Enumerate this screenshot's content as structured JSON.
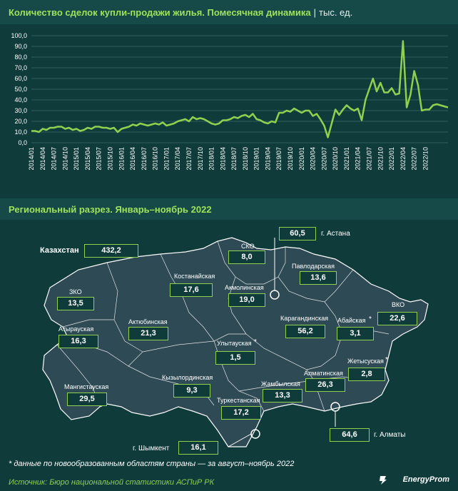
{
  "header": {
    "title": "Количество сделок купли-продажи жилья. Помесячная динамика",
    "separator": "|",
    "unit": "тыс. ед."
  },
  "chart_data": {
    "type": "line",
    "title": "Количество сделок купли-продажи жилья. Помесячная динамика",
    "ylabel": "",
    "unit": "тыс. ед.",
    "ylim": [
      0,
      100
    ],
    "yticks": [
      "0,0",
      "10,0",
      "20,0",
      "30,0",
      "40,0",
      "50,0",
      "60,0",
      "70,0",
      "80,0",
      "90,0",
      "100,0"
    ],
    "xtick_labels": [
      "2014/01",
      "2014/04",
      "2014/07",
      "2014/10",
      "2015/01",
      "2015/04",
      "2015/07",
      "2015/10",
      "2016/01",
      "2016/04",
      "2016/07",
      "2016/10",
      "2017/01",
      "2017/04",
      "2017/07",
      "2017/10",
      "2018/01",
      "2018/04",
      "2018/07",
      "2018/10",
      "2019/01",
      "2019/04",
      "2019/07",
      "2019/10",
      "2020/01",
      "2020/04",
      "2020/07",
      "2020/10",
      "2021/01",
      "2021/04",
      "2021/07",
      "2021/10",
      "2022/01",
      "2022/04",
      "2022/07",
      "2022/10"
    ],
    "grid": true,
    "line_color": "#8fd14f",
    "values": [
      11,
      11,
      10,
      13,
      12,
      14,
      14,
      15,
      15,
      13,
      14,
      12,
      13,
      11,
      12,
      14,
      13,
      15,
      15,
      14,
      14,
      13,
      14,
      10,
      13,
      14,
      15,
      17,
      16,
      18,
      17,
      16,
      17,
      18,
      17,
      19,
      16,
      17,
      18,
      20,
      21,
      22,
      20,
      24,
      22,
      23,
      22,
      20,
      18,
      17,
      18,
      21,
      21,
      22,
      24,
      23,
      25,
      26,
      24,
      27,
      22,
      21,
      19,
      18,
      20,
      19,
      28,
      28,
      30,
      29,
      32,
      30,
      28,
      30,
      30,
      25,
      27,
      22,
      16,
      5,
      18,
      31,
      26,
      31,
      35,
      32,
      30,
      32,
      21,
      40,
      50,
      60,
      48,
      56,
      47,
      47,
      51,
      45,
      46,
      95,
      33,
      45,
      67,
      54,
      30,
      31,
      31,
      35,
      36,
      35,
      34,
      33
    ]
  },
  "regional": {
    "title": "Региональный разрез. Январь–ноябрь 2022",
    "kazakhstan": {
      "label": "Казахстан",
      "value": "432,2"
    },
    "regions": [
      {
        "name": "СКО",
        "value": "8,0"
      },
      {
        "name": "г. Астана",
        "value": "60,5"
      },
      {
        "name": "Павлодарская",
        "value": "13,6"
      },
      {
        "name": "Костанайская",
        "value": "17,6"
      },
      {
        "name": "Акмолинская",
        "value": "19,0"
      },
      {
        "name": "ЗКО",
        "value": "13,5"
      },
      {
        "name": "ВКО",
        "value": "22,6"
      },
      {
        "name": "Атырауская",
        "value": "16,3"
      },
      {
        "name": "Актюбинская",
        "value": "21,3"
      },
      {
        "name": "Карагандинская",
        "value": "56,2"
      },
      {
        "name": "Абайская",
        "value": "3,1"
      },
      {
        "name": "Улытауская",
        "value": "1,5"
      },
      {
        "name": "Жетысуская",
        "value": "2,8"
      },
      {
        "name": "Мангистауская",
        "value": "29,5"
      },
      {
        "name": "Кызылординская",
        "value": "9,3"
      },
      {
        "name": "Алматинская",
        "value": "26,3"
      },
      {
        "name": "Жамбылская",
        "value": "13,3"
      },
      {
        "name": "Туркестанская",
        "value": "17,2"
      },
      {
        "name": "г. Алматы",
        "value": "64,6"
      },
      {
        "name": "г. Шымкент",
        "value": "16,1"
      }
    ],
    "new_region_marker": "*"
  },
  "footnote": "* данные по новообразованным областям страны — за август–ноябрь 2022",
  "source": "Источник: Бюро национальной статистики АСПиР РК",
  "brand": "EnergyProm",
  "colors": {
    "accent": "#8fd14f",
    "background": "#0f3b3b",
    "map_fill": "#2e4a55"
  }
}
